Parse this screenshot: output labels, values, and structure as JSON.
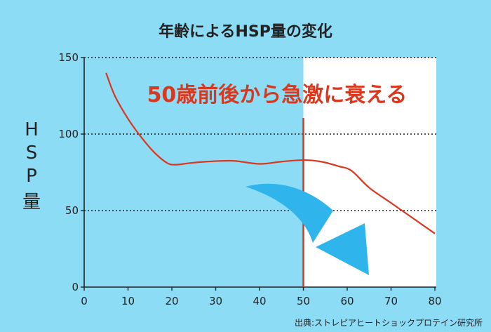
{
  "chart_data": {
    "type": "line",
    "title": "年齢によるHSP量の変化",
    "annotation": "50歳前後から急激に衰える",
    "ylabel_chars": [
      "H",
      "S",
      "P",
      "量"
    ],
    "source": "出典:ストレピアヒートショックプロテイン研究所",
    "xlim": [
      0,
      80
    ],
    "ylim": [
      0,
      150
    ],
    "x_ticks": [
      "0",
      "10",
      "20",
      "30",
      "40",
      "50",
      "60",
      "70",
      "80"
    ],
    "y_ticks": [
      "0",
      "50",
      "100",
      "150"
    ],
    "grid": "horizontal dotted",
    "marker_line_x": 50,
    "highlight_from_x": 50,
    "series": [
      {
        "color": "#d9381e",
        "points": [
          [
            5,
            140
          ],
          [
            7,
            125
          ],
          [
            10,
            110
          ],
          [
            13,
            98
          ],
          [
            16,
            88
          ],
          [
            19,
            81
          ],
          [
            21,
            80
          ],
          [
            24,
            81
          ],
          [
            28,
            82
          ],
          [
            34,
            82.5
          ],
          [
            40,
            80.5
          ],
          [
            45,
            82
          ],
          [
            50,
            83
          ],
          [
            54,
            82
          ],
          [
            58,
            79
          ],
          [
            61,
            76
          ],
          [
            65,
            65
          ],
          [
            70,
            55
          ],
          [
            75,
            45
          ],
          [
            80,
            35
          ]
        ]
      }
    ],
    "arrow_color": "#30b4ec"
  }
}
